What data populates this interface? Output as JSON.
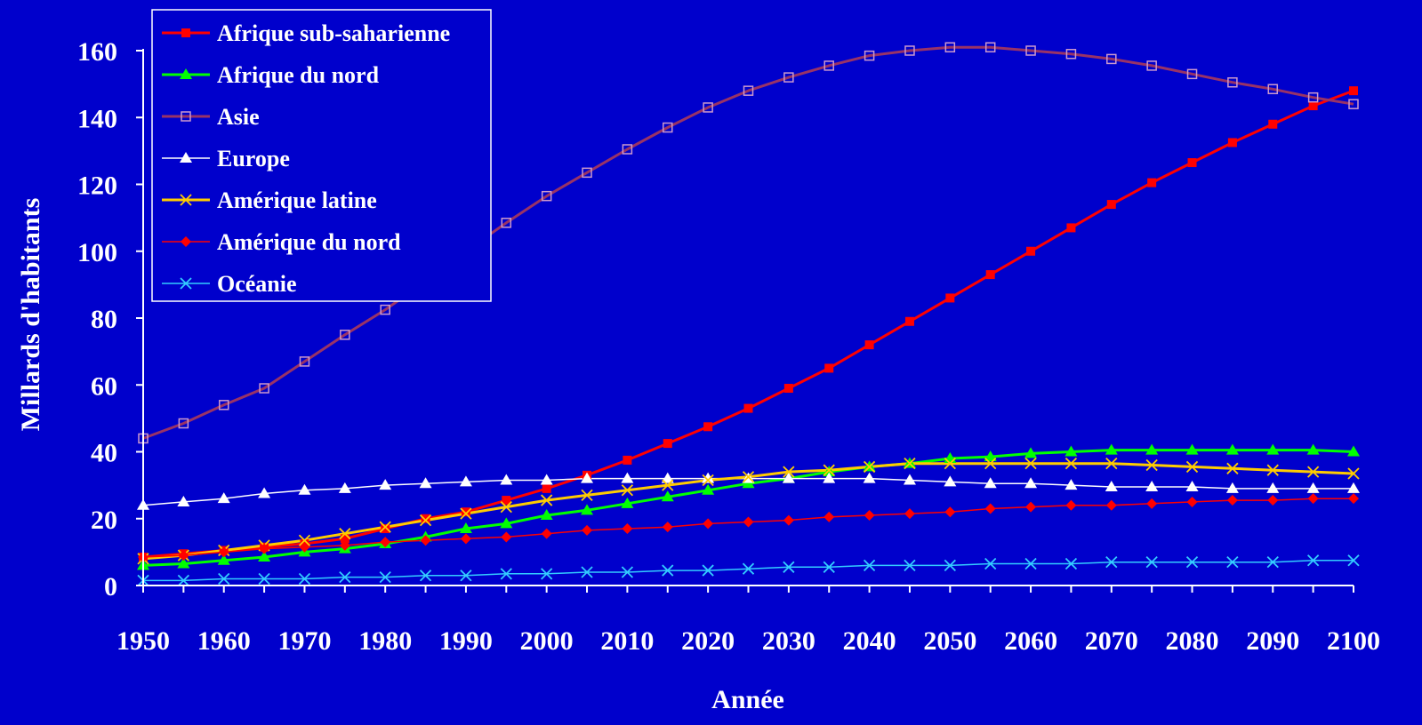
{
  "chart_data": {
    "type": "line",
    "title": "",
    "xlabel": "Année",
    "ylabel": "Millards d'habitants",
    "xlim": [
      1950,
      2100
    ],
    "ylim": [
      0,
      160
    ],
    "x_ticks": [
      "1950",
      "1960",
      "1970",
      "1980",
      "1990",
      "2000",
      "2010",
      "2020",
      "2030",
      "2040",
      "2050",
      "2060",
      "2070",
      "2080",
      "2090",
      "2100"
    ],
    "y_ticks": [
      "0",
      "20",
      "40",
      "60",
      "80",
      "100",
      "120",
      "140",
      "160"
    ],
    "grid": false,
    "legend_position": "top-left",
    "x": [
      1950,
      1955,
      1960,
      1965,
      1970,
      1975,
      1980,
      1985,
      1990,
      1995,
      2000,
      2005,
      2010,
      2015,
      2020,
      2025,
      2030,
      2035,
      2040,
      2045,
      2050,
      2055,
      2060,
      2065,
      2070,
      2075,
      2080,
      2085,
      2090,
      2095,
      2100
    ],
    "series": [
      {
        "name": "Afrique sub-saharienne",
        "color": "#ff0000",
        "marker": "square-filled",
        "width": 3,
        "values": [
          8.5,
          9.5,
          10.5,
          11.5,
          12.5,
          14,
          17,
          20,
          22,
          25.5,
          29,
          33,
          37.5,
          42.5,
          47.5,
          53,
          59,
          65,
          72,
          79,
          86,
          93,
          100,
          107,
          114,
          120.5,
          126.5,
          132.5,
          138,
          143.5,
          148
        ]
      },
      {
        "name": "Afrique du nord",
        "color": "#00ff00",
        "marker": "triangle-filled",
        "width": 3,
        "values": [
          6,
          6.5,
          7.5,
          8.5,
          10,
          11,
          12.5,
          14.5,
          17,
          18.5,
          21,
          22.5,
          24.5,
          26.5,
          28.5,
          30.5,
          32,
          34,
          35.5,
          36.5,
          38,
          38.5,
          39.5,
          40,
          40.5,
          40.5,
          40.5,
          40.5,
          40.5,
          40.5,
          40
        ]
      },
      {
        "name": "Asie",
        "color": "#993366",
        "marker": "square-open",
        "width": 3,
        "values": [
          44,
          48.5,
          54,
          59,
          67,
          75,
          82.5,
          91,
          100,
          108.5,
          116.5,
          123.5,
          130.5,
          137,
          143,
          148,
          152,
          155.5,
          158.5,
          160,
          161,
          161,
          160,
          159,
          157.5,
          155.5,
          153,
          150.5,
          148.5,
          146,
          144
        ]
      },
      {
        "name": "Europe",
        "color": "#ffffff",
        "marker": "triangle-filled",
        "width": 1.5,
        "values": [
          24,
          25,
          26,
          27.5,
          28.5,
          29,
          30,
          30.5,
          31,
          31.5,
          31.5,
          32,
          32,
          32,
          32,
          32,
          32,
          32,
          32,
          31.5,
          31,
          30.5,
          30.5,
          30,
          29.5,
          29.5,
          29.5,
          29,
          29,
          29,
          29
        ]
      },
      {
        "name": "Amérique latine",
        "color": "#ffcc00",
        "marker": "x",
        "width": 3,
        "values": [
          8,
          9,
          10.5,
          12,
          13.5,
          15.5,
          17.5,
          19.5,
          21.5,
          23.5,
          25.5,
          27,
          28.5,
          30,
          31.5,
          32.5,
          34,
          34.5,
          35.5,
          36.5,
          36.5,
          36.5,
          36.5,
          36.5,
          36.5,
          36,
          35.5,
          35,
          34.5,
          34,
          33.5
        ]
      },
      {
        "name": "Amérique du nord",
        "color": "#ff0000",
        "marker": "diamond-filled",
        "width": 1.5,
        "values": [
          8.5,
          9,
          10,
          11,
          11.5,
          12,
          13,
          13.5,
          14,
          14.5,
          15.5,
          16.5,
          17,
          17.5,
          18.5,
          19,
          19.5,
          20.5,
          21,
          21.5,
          22,
          23,
          23.5,
          24,
          24,
          24.5,
          25,
          25.5,
          25.5,
          26,
          26
        ]
      },
      {
        "name": "Océanie",
        "color": "#33ccff",
        "marker": "x",
        "width": 1.5,
        "values": [
          1.5,
          1.5,
          2,
          2,
          2,
          2.5,
          2.5,
          3,
          3,
          3.5,
          3.5,
          4,
          4,
          4.5,
          4.5,
          5,
          5.5,
          5.5,
          6,
          6,
          6,
          6.5,
          6.5,
          6.5,
          7,
          7,
          7,
          7,
          7,
          7.5,
          7.5
        ]
      }
    ]
  }
}
